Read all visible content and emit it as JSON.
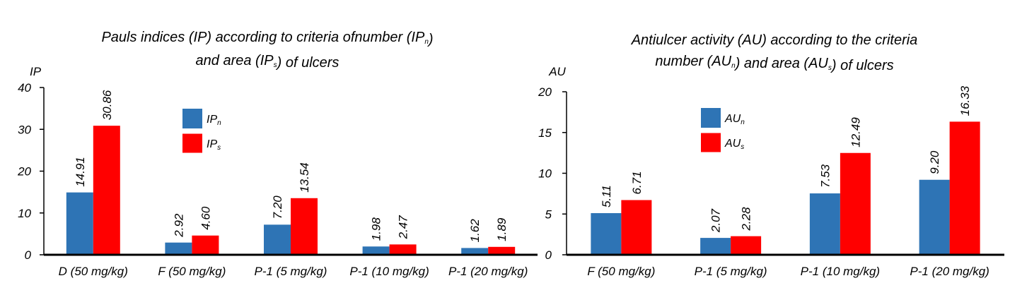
{
  "colors": {
    "series_n": "#2e74b5",
    "series_s": "#ff0000"
  },
  "chart_data": [
    {
      "type": "bar",
      "title_lines": [
        [
          {
            "t": "Pauls indices (IP) according to criteria ofnumber (IP"
          },
          {
            "t": "n",
            "sub": true
          },
          {
            "t": ")"
          }
        ],
        [
          {
            "t": "and area (IP"
          },
          {
            "t": "s",
            "sub": true
          },
          {
            "t": ") of ulcers"
          }
        ]
      ],
      "ylabel": "IP",
      "ylim": [
        0,
        40
      ],
      "yticks": [
        "0",
        "10",
        "20",
        "30",
        "40"
      ],
      "categories": [
        "D (50 mg/kg)",
        "F (50 mg/kg)",
        "P-1 (5 mg/kg)",
        "P-1 (10 mg/kg)",
        "P-1 (20 mg/kg)"
      ],
      "series": [
        {
          "name": "IP",
          "sub": "n",
          "values": [
            14.91,
            2.92,
            7.2,
            1.98,
            1.62
          ],
          "labels": [
            "14.91",
            "2.92",
            "7.20",
            "1.98",
            "1.62"
          ]
        },
        {
          "name": "IP",
          "sub": "s",
          "values": [
            30.86,
            4.6,
            13.54,
            2.47,
            1.89
          ],
          "labels": [
            "30.86",
            "4.60",
            "13.54",
            "2.47",
            "1.89"
          ]
        }
      ],
      "legend": "upper-middle"
    },
    {
      "type": "bar",
      "title_lines": [
        [
          {
            "t": "Antiulcer activity (AU) according to the criteria"
          }
        ],
        [
          {
            "t": "number (AU"
          },
          {
            "t": "n",
            "sub": true
          },
          {
            "t": ") and area (AU"
          },
          {
            "t": "s",
            "sub": true
          },
          {
            "t": ") of ulcers"
          }
        ]
      ],
      "ylabel": "AU",
      "ylim": [
        0,
        20
      ],
      "yticks": [
        "0",
        "5",
        "10",
        "15",
        "20"
      ],
      "categories": [
        "F (50 mg/kg)",
        "P-1 (5 mg/kg)",
        "P-1 (10 mg/kg)",
        "P-1 (20 mg/kg)"
      ],
      "series": [
        {
          "name": "AU",
          "sub": "n",
          "values": [
            5.11,
            2.07,
            7.53,
            9.2
          ],
          "labels": [
            "5.11",
            "2.07",
            "7.53",
            "9.20"
          ]
        },
        {
          "name": "AU",
          "sub": "s",
          "values": [
            6.71,
            2.28,
            12.49,
            16.33
          ],
          "labels": [
            "6.71",
            "2.28",
            "12.49",
            "16.33"
          ]
        }
      ],
      "legend": "upper-middle"
    }
  ]
}
